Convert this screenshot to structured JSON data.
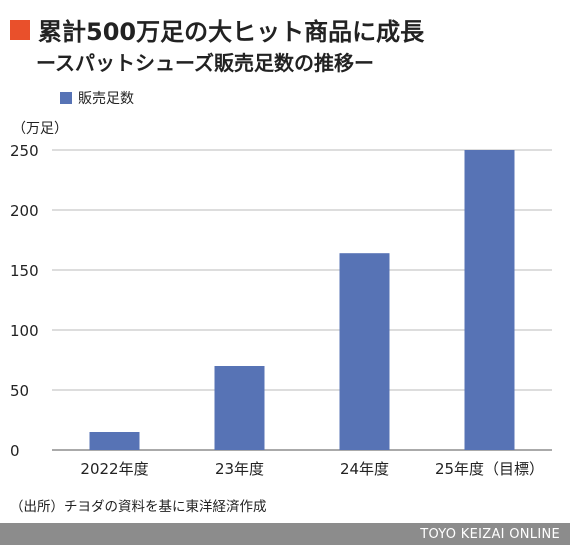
{
  "colors": {
    "accent": "#e9502b",
    "bar": "#5773b5",
    "grid": "#bbbbbb",
    "footer_bg": "#8c8c8c"
  },
  "title": "累計500万足の大ヒット商品に成長",
  "subtitle": "ースパットシューズ販売足数の推移ー",
  "source": "（出所）チヨダの資料を基に東洋経済作成",
  "footer": "TOYO KEIZAI ONLINE",
  "chart_data": {
    "type": "bar",
    "categories": [
      "2022年度",
      "23年度",
      "24年度",
      "25年度（目標）"
    ],
    "series": [
      {
        "name": "販売足数",
        "values": [
          15,
          70,
          164,
          250
        ]
      }
    ],
    "unit_label": "（万足）",
    "yticks": [
      0,
      50,
      100,
      150,
      200,
      250
    ],
    "ylim": [
      0,
      250
    ],
    "grid": true,
    "legend": "top-left"
  }
}
